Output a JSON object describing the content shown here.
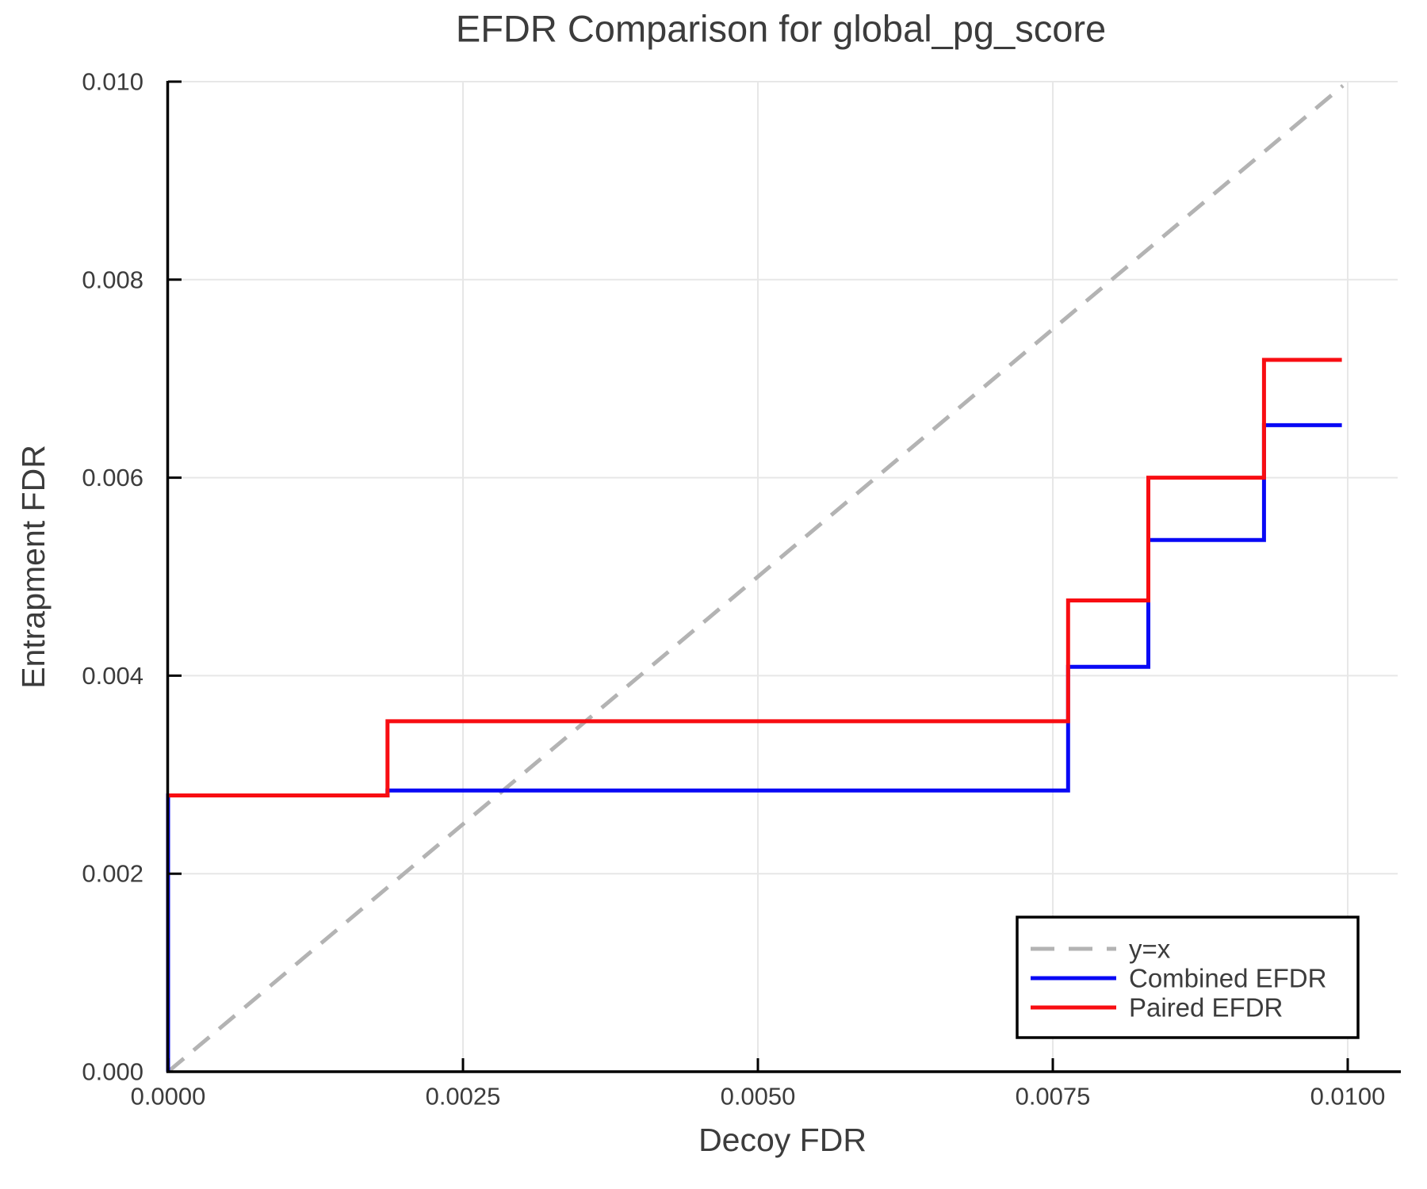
{
  "title": "EFDR Comparison for global_pg_score",
  "chart_data": {
    "type": "line",
    "title": "EFDR Comparison for global_pg_score",
    "xlabel": "Decoy FDR",
    "ylabel": "Entrapment FDR",
    "xlim": [
      0,
      0.01042
    ],
    "ylim": [
      0,
      0.01
    ],
    "grid": true,
    "tick_direction": "in",
    "legend_position": "lower-right",
    "x_ticks": [
      {
        "v": 0.0,
        "label": "0.0000"
      },
      {
        "v": 0.0025,
        "label": "0.0025"
      },
      {
        "v": 0.005,
        "label": "0.0050"
      },
      {
        "v": 0.0075,
        "label": "0.0075"
      },
      {
        "v": 0.01,
        "label": "0.0100"
      }
    ],
    "y_ticks": [
      {
        "v": 0.0,
        "label": "0.000"
      },
      {
        "v": 0.002,
        "label": "0.002"
      },
      {
        "v": 0.004,
        "label": "0.004"
      },
      {
        "v": 0.006,
        "label": "0.006"
      },
      {
        "v": 0.008,
        "label": "0.008"
      },
      {
        "v": 0.01,
        "label": "0.010"
      }
    ],
    "series": [
      {
        "name": "y=x",
        "color": "#b3b3b3",
        "style": "dashed",
        "points": [
          [
            0,
            0
          ],
          [
            0.00996,
            0.00996
          ]
        ]
      },
      {
        "name": "Combined EFDR",
        "color": "#0909f5",
        "style": "solid",
        "points": [
          [
            0,
            0
          ],
          [
            0,
            0.00279
          ],
          [
            0.00186,
            0.00279
          ],
          [
            0.00186,
            0.00284
          ],
          [
            0.00763,
            0.00284
          ],
          [
            0.00763,
            0.00409
          ],
          [
            0.00831,
            0.00409
          ],
          [
            0.00831,
            0.00537
          ],
          [
            0.00929,
            0.00537
          ],
          [
            0.00929,
            0.00653
          ],
          [
            0.00995,
            0.00653
          ]
        ]
      },
      {
        "name": "Paired EFDR",
        "color": "#f80d12",
        "style": "solid",
        "points": [
          [
            0,
            0.00279
          ],
          [
            0.00186,
            0.00279
          ],
          [
            0.00186,
            0.00354
          ],
          [
            0.00763,
            0.00354
          ],
          [
            0.00763,
            0.00476
          ],
          [
            0.00831,
            0.00476
          ],
          [
            0.00831,
            0.006
          ],
          [
            0.00929,
            0.006
          ],
          [
            0.00929,
            0.00719
          ],
          [
            0.00995,
            0.00719
          ]
        ]
      }
    ]
  }
}
